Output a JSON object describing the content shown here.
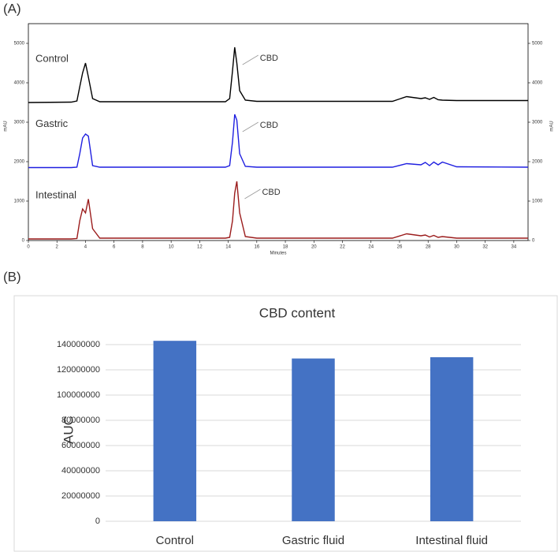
{
  "chart_data": [
    {
      "type": "line",
      "panel_label": "(A)",
      "x_label": "Minutes",
      "y_label": "mAU",
      "x": [
        0,
        3,
        3.4,
        3.6,
        3.8,
        4.0,
        4.2,
        4.5,
        5,
        13.8,
        14.1,
        14.3,
        14.45,
        14.6,
        14.8,
        15.2,
        16,
        25.5,
        26.5,
        27.5,
        27.8,
        28.1,
        28.4,
        28.7,
        29,
        30,
        35
      ],
      "series": [
        {
          "name": "Control",
          "color": "#000000",
          "values": [
            3500,
            3510,
            3540,
            3900,
            4250,
            4500,
            4150,
            3600,
            3520,
            3520,
            3600,
            4300,
            4900,
            4500,
            3800,
            3560,
            3530,
            3530,
            3650,
            3600,
            3620,
            3580,
            3630,
            3570,
            3560,
            3550,
            3550
          ]
        },
        {
          "name": "Gastric",
          "color": "#1f1fe0",
          "values": [
            1850,
            1850,
            1860,
            2200,
            2600,
            2700,
            2650,
            1900,
            1860,
            1860,
            1900,
            2500,
            3200,
            3050,
            2200,
            1880,
            1860,
            1860,
            1950,
            1920,
            1980,
            1900,
            1990,
            1920,
            1990,
            1870,
            1860
          ]
        },
        {
          "name": "Intestinal",
          "color": "#9b1c1c",
          "values": [
            40,
            40,
            50,
            500,
            800,
            700,
            1050,
            300,
            60,
            60,
            80,
            500,
            1200,
            1500,
            700,
            100,
            60,
            60,
            170,
            120,
            140,
            90,
            130,
            80,
            100,
            60,
            60
          ]
        }
      ],
      "annotations": [
        "CBD",
        "CBD",
        "CBD"
      ],
      "xlim": [
        0,
        35
      ],
      "xticks": [
        0,
        2,
        4,
        6,
        8,
        10,
        12,
        14,
        16,
        18,
        20,
        22,
        24,
        26,
        28,
        30,
        32,
        34
      ],
      "ylim": [
        0,
        5500
      ],
      "yticks": [
        0,
        1000,
        2000,
        3000,
        4000,
        5000
      ]
    },
    {
      "type": "bar",
      "panel_label": "(B)",
      "title": "CBD content",
      "y_label": "AUC",
      "categories": [
        "Control",
        "Gastric fluid",
        "Intestinal fluid"
      ],
      "values": [
        143000000,
        129000000,
        130000000
      ],
      "color": "#4472c4",
      "ylim": [
        0,
        150000000
      ],
      "yticks": [
        0,
        20000000,
        40000000,
        60000000,
        80000000,
        100000000,
        120000000,
        140000000
      ],
      "grid": true
    }
  ]
}
